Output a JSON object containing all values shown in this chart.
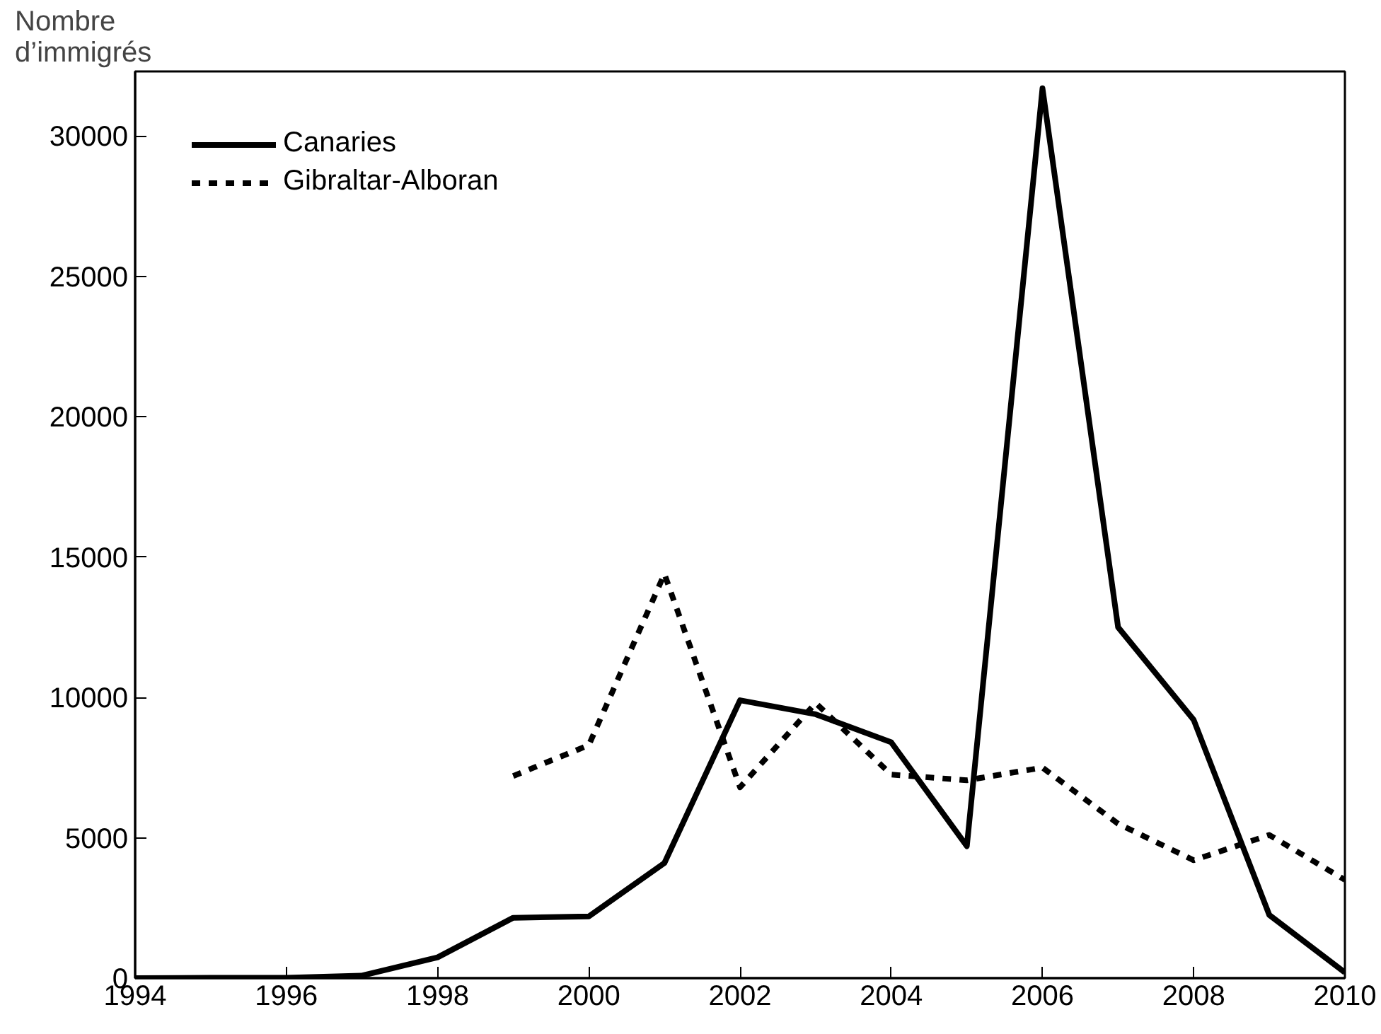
{
  "chart_data": {
    "type": "line",
    "ylabel": "Nombre\nd’immigrés",
    "xlim": [
      1994,
      2010
    ],
    "xticks": [
      1994,
      1996,
      1998,
      2000,
      2002,
      2004,
      2006,
      2008,
      2010
    ],
    "ylim": [
      0,
      32300
    ],
    "yticks": [
      0,
      5000,
      10000,
      15000,
      20000,
      25000,
      30000
    ],
    "grid": false,
    "legend": "top left",
    "marker": "none",
    "series": [
      {
        "name": "Canaries",
        "color": "#000000",
        "line_style": "solid",
        "x": [
          1994,
          1995,
          1996,
          1997,
          1998,
          1999,
          2000,
          2001,
          2002,
          2003,
          2004,
          2005,
          2006,
          2007,
          2008,
          2009,
          2010
        ],
        "values": [
          0,
          10,
          10,
          90,
          740,
          2150,
          2200,
          4100,
          9900,
          9400,
          8400,
          4700,
          31700,
          12500,
          9200,
          2250,
          200
        ]
      },
      {
        "name": "Gibraltar-Alboran",
        "color": "#000000",
        "line_style": "dashed",
        "x": [
          1999,
          2000,
          2001,
          2002,
          2003,
          2004,
          2005,
          2006,
          2007,
          2008,
          2009,
          2010
        ],
        "values": [
          7200,
          8300,
          14400,
          6800,
          9800,
          7250,
          7050,
          7500,
          5500,
          4200,
          5100,
          3500
        ]
      }
    ]
  }
}
